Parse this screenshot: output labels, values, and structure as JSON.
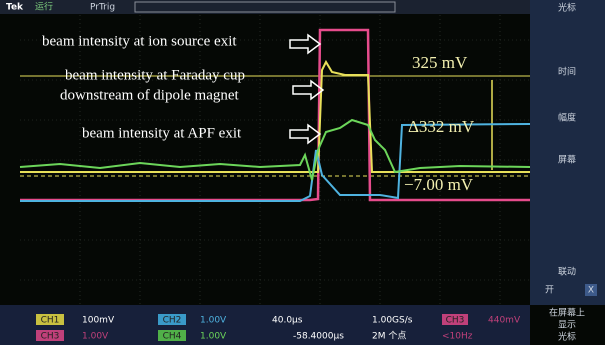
{
  "top_bar": {
    "brand": "Tek",
    "status": "运行",
    "trigger": "PrTrig"
  },
  "annotations": {
    "ion_source": "beam intensity at ion source exit",
    "faraday_line1": "beam intensity at Faraday cup",
    "faraday_line2": "downstream of dipole magnet",
    "apf": "beam intensity at APF exit"
  },
  "cursor_readouts": {
    "upper": "325 mV",
    "delta": "Δ332 mV",
    "lower": "−7.00 mV"
  },
  "side_menu": {
    "title": "光标",
    "item1": "时间",
    "item2": "幅度",
    "item3": "屏幕",
    "link": "联动",
    "on": "开",
    "x": "X",
    "show1": "在屏幕上",
    "show2": "显示",
    "show3": "光标"
  },
  "status_bar": {
    "ch1": "CH1",
    "ch1_scale": "100mV",
    "ch2": "CH2",
    "ch2_scale": "1.00V",
    "ch3": "CH3",
    "ch3_scale": "1.00V",
    "ch4": "CH4",
    "ch4_scale": "1.00V",
    "timebase": "40.0μs",
    "position": "-58.4000μs",
    "rate": "1.00GS/s",
    "points": "2M 个点",
    "trig_ch": "CH3",
    "trig_level": "440mV",
    "freq": "<10Hz"
  }
}
